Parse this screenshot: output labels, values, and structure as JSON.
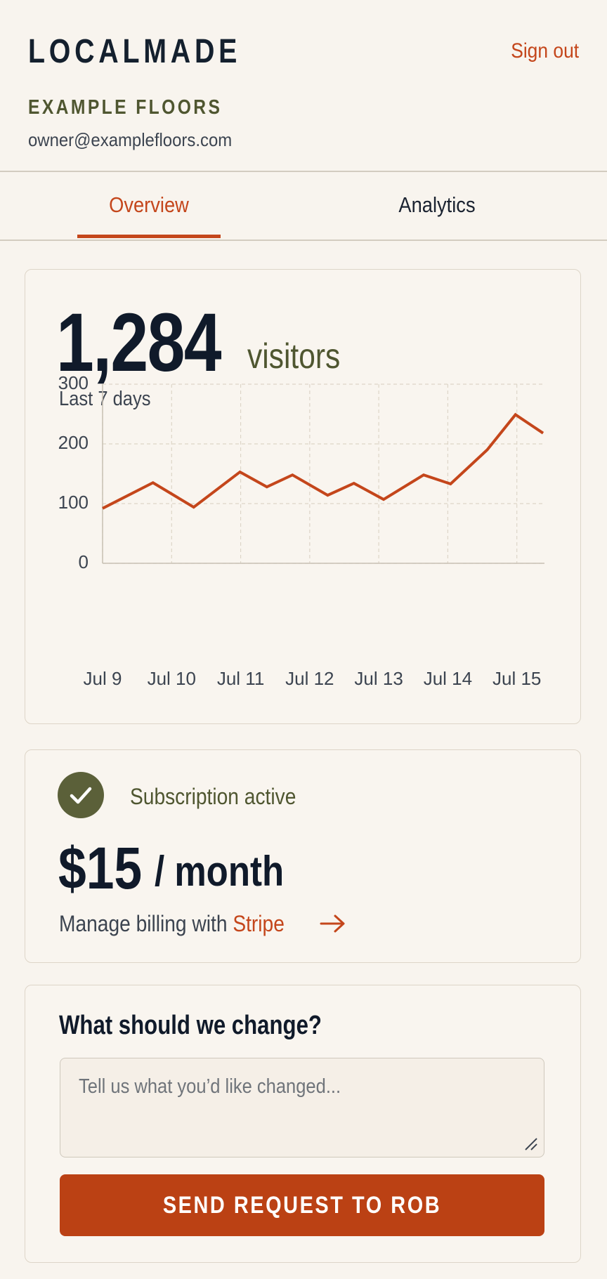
{
  "header": {
    "brand": "LOCALMADE",
    "sign_out": "Sign out",
    "business": "EXAMPLE FLOORS",
    "email": "owner@examplefloors.com"
  },
  "tabs": [
    "Overview",
    "Analytics"
  ],
  "visitors": {
    "count": "1,284",
    "unit": "visitors",
    "period": "Last 7 days",
    "chart": {
      "type": "line",
      "color": "#c4461b",
      "grid": true,
      "x": [
        0,
        0.73,
        1.32,
        1.99,
        2.38,
        2.75,
        3.26,
        3.64,
        4.07,
        4.65,
        5.04,
        5.57,
        5.98,
        6.38
      ],
      "values": [
        92,
        135,
        94,
        153,
        128,
        148,
        114,
        134,
        107,
        148,
        133,
        190,
        249,
        218
      ],
      "xlim": [
        0,
        6.4
      ],
      "xticks": [
        {
          "value": 0,
          "label": "Jul 9"
        },
        {
          "value": 1,
          "label": "Jul 10"
        },
        {
          "value": 2,
          "label": "Jul 11"
        },
        {
          "value": 3,
          "label": "Jul 12"
        },
        {
          "value": 4,
          "label": "Jul 13"
        },
        {
          "value": 5,
          "label": "Jul 14"
        },
        {
          "value": 6,
          "label": "Jul 15"
        }
      ],
      "ylim": [
        0,
        300
      ],
      "yticks": [
        0,
        100,
        200,
        300
      ]
    }
  },
  "subscription": {
    "status": "Subscription active",
    "price": "$15",
    "period": "/ month",
    "billing_text": "Manage billing with",
    "billing_link": "Stripe"
  },
  "feedback": {
    "title": "What should we change?",
    "placeholder": "Tell us what you’d like changed...",
    "button": "SEND REQUEST TO ROB"
  }
}
